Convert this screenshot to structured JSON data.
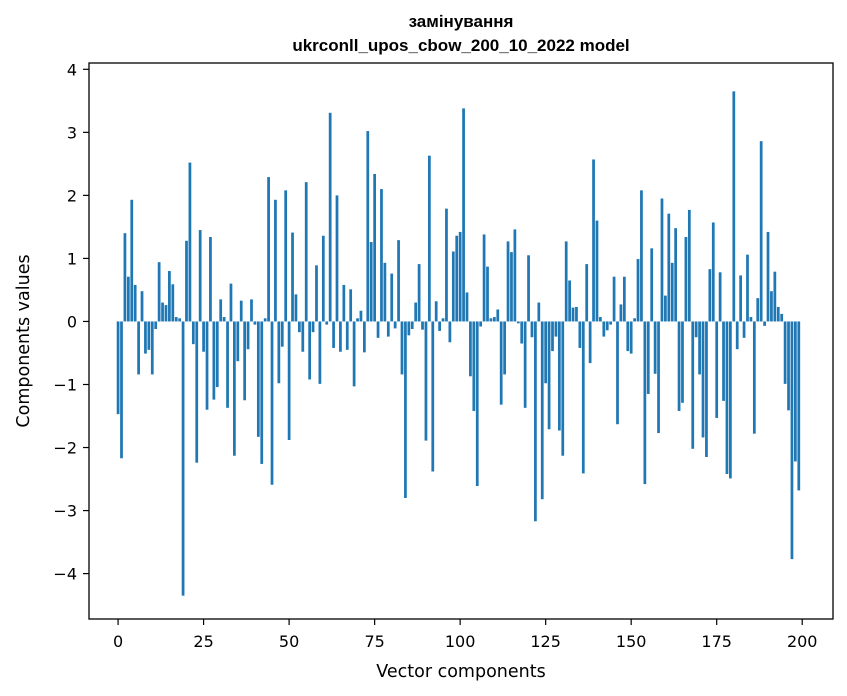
{
  "chart_data": {
    "type": "bar",
    "title_lines": [
      "замінування",
      "ukrconll_upos_cbow_200_10_2022 model"
    ],
    "xlabel": "Vector components",
    "ylabel": "Components values",
    "xlim": [
      -8.5,
      209
    ],
    "ylim": [
      -4.72,
      4.1
    ],
    "xticks": [
      0,
      25,
      50,
      75,
      100,
      125,
      150,
      175,
      200
    ],
    "yticks": [
      -4,
      -3,
      -2,
      -1,
      0,
      1,
      2,
      3,
      4
    ],
    "bar_color": "#1f77b4",
    "grid": false,
    "x": [
      0,
      1,
      2,
      3,
      4,
      5,
      6,
      7,
      8,
      9,
      10,
      11,
      12,
      13,
      14,
      15,
      16,
      17,
      18,
      19,
      20,
      21,
      22,
      23,
      24,
      25,
      26,
      27,
      28,
      29,
      30,
      31,
      32,
      33,
      34,
      35,
      36,
      37,
      38,
      39,
      40,
      41,
      42,
      43,
      44,
      45,
      46,
      47,
      48,
      49,
      50,
      51,
      52,
      53,
      54,
      55,
      56,
      57,
      58,
      59,
      60,
      61,
      62,
      63,
      64,
      65,
      66,
      67,
      68,
      69,
      70,
      71,
      72,
      73,
      74,
      75,
      76,
      77,
      78,
      79,
      80,
      81,
      82,
      83,
      84,
      85,
      86,
      87,
      88,
      89,
      90,
      91,
      92,
      93,
      94,
      95,
      96,
      97,
      98,
      99,
      100,
      101,
      102,
      103,
      104,
      105,
      106,
      107,
      108,
      109,
      110,
      111,
      112,
      113,
      114,
      115,
      116,
      117,
      118,
      119,
      120,
      121,
      122,
      123,
      124,
      125,
      126,
      127,
      128,
      129,
      130,
      131,
      132,
      133,
      134,
      135,
      136,
      137,
      138,
      139,
      140,
      141,
      142,
      143,
      144,
      145,
      146,
      147,
      148,
      149,
      150,
      151,
      152,
      153,
      154,
      155,
      156,
      157,
      158,
      159,
      160,
      161,
      162,
      163,
      164,
      165,
      166,
      167,
      168,
      169,
      170,
      171,
      172,
      173,
      174,
      175,
      176,
      177,
      178,
      179,
      180,
      181,
      182,
      183,
      184,
      185,
      186,
      187,
      188,
      189,
      190,
      191,
      192,
      193,
      194,
      195,
      196,
      197,
      198,
      199
    ],
    "values": [
      -1.47,
      -2.17,
      1.4,
      0.71,
      1.93,
      0.58,
      -0.84,
      0.48,
      -0.51,
      -0.45,
      -0.84,
      -0.12,
      0.94,
      0.3,
      0.26,
      0.8,
      0.59,
      0.07,
      0.05,
      -4.35,
      1.28,
      2.52,
      -0.36,
      -2.24,
      1.45,
      -0.48,
      -1.4,
      1.34,
      -1.24,
      -1.04,
      0.35,
      0.07,
      -1.37,
      0.6,
      -2.13,
      -0.63,
      0.33,
      -1.25,
      -0.44,
      0.35,
      -0.05,
      -1.83,
      -2.26,
      0.05,
      2.29,
      -2.59,
      1.93,
      -0.98,
      -0.4,
      2.08,
      -1.88,
      1.41,
      0.43,
      -0.17,
      -0.48,
      2.21,
      -0.92,
      -0.17,
      0.89,
      -0.99,
      1.36,
      -0.05,
      3.31,
      -0.42,
      2.0,
      -0.48,
      0.58,
      -0.45,
      0.51,
      -1.03,
      0.05,
      0.17,
      -0.49,
      3.02,
      1.26,
      2.34,
      -0.26,
      2.1,
      0.93,
      -0.24,
      0.76,
      -0.11,
      1.29,
      -0.84,
      -2.8,
      -0.22,
      -0.12,
      0.3,
      0.91,
      -0.13,
      -1.89,
      2.63,
      -2.38,
      0.32,
      -0.15,
      0.05,
      1.79,
      -0.33,
      1.11,
      1.36,
      1.42,
      3.38,
      0.46,
      -0.87,
      -1.42,
      -2.61,
      -0.08,
      1.38,
      0.87,
      0.05,
      0.07,
      0.19,
      -1.32,
      -0.84,
      1.27,
      1.1,
      1.46,
      -0.03,
      -0.35,
      -1.37,
      1.05,
      -0.25,
      -3.17,
      0.3,
      -2.82,
      -0.98,
      -1.71,
      -0.47,
      -0.24,
      -1.73,
      -2.13,
      1.27,
      0.65,
      0.22,
      0.23,
      -0.42,
      -2.41,
      0.91,
      -0.66,
      2.57,
      1.6,
      0.07,
      -0.24,
      -0.14,
      -0.05,
      0.71,
      -1.63,
      0.27,
      0.71,
      -0.47,
      -0.51,
      0.05,
      0.99,
      2.08,
      -2.58,
      -1.15,
      1.16,
      -0.83,
      -1.77,
      1.95,
      0.41,
      1.71,
      0.93,
      1.48,
      -1.42,
      -1.29,
      1.34,
      1.77,
      -2.02,
      -0.25,
      -0.84,
      -1.84,
      -2.15,
      0.83,
      1.57,
      -1.53,
      0.78,
      -1.26,
      -2.42,
      -2.49,
      3.65,
      -0.44,
      0.73,
      -0.26,
      1.06,
      0.07,
      -1.78,
      0.37,
      2.86,
      -0.07,
      1.42,
      0.48,
      0.79,
      0.23,
      0.12,
      -0.99,
      -1.41,
      -3.77,
      -2.22,
      -2.68
    ]
  }
}
